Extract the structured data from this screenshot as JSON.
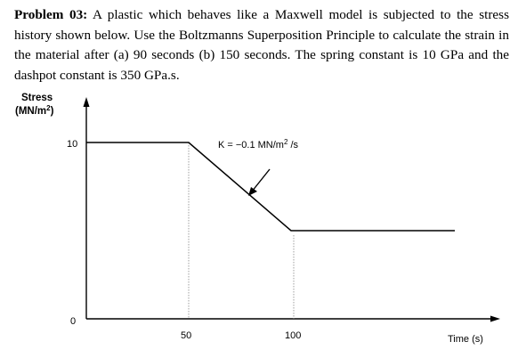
{
  "problem": {
    "number": "Problem 03:",
    "text": "A plastic which behaves like a Maxwell model is subjected to the stress history shown below. Use the Boltzmanns Superposition Principle to calculate the strain in the material after (a) 90 seconds (b) 150 seconds. The spring constant is 10 GPa and the dashpot constant is 350 GPa.s."
  },
  "figure": {
    "ylabel_line1": "Stress",
    "ylabel_line2": "(MN/m",
    "ylabel_sup": "2",
    "ylabel_close": ")",
    "xlabel": "Time (s)",
    "y_ticks": [
      "10",
      "0"
    ],
    "x_ticks": [
      "50",
      "100"
    ],
    "annotation_prefix": "K = −0.1 MN/m",
    "annotation_sup": "2",
    "annotation_suffix": " /s"
  },
  "chart_data": {
    "type": "line",
    "x": [
      0,
      50,
      100,
      180
    ],
    "y": [
      10,
      10,
      5,
      5
    ],
    "xlim": [
      0,
      190
    ],
    "ylim": [
      0,
      10
    ],
    "xlabel": "Time (s)",
    "ylabel": "Stress (MN/m2)",
    "grid": false
  }
}
